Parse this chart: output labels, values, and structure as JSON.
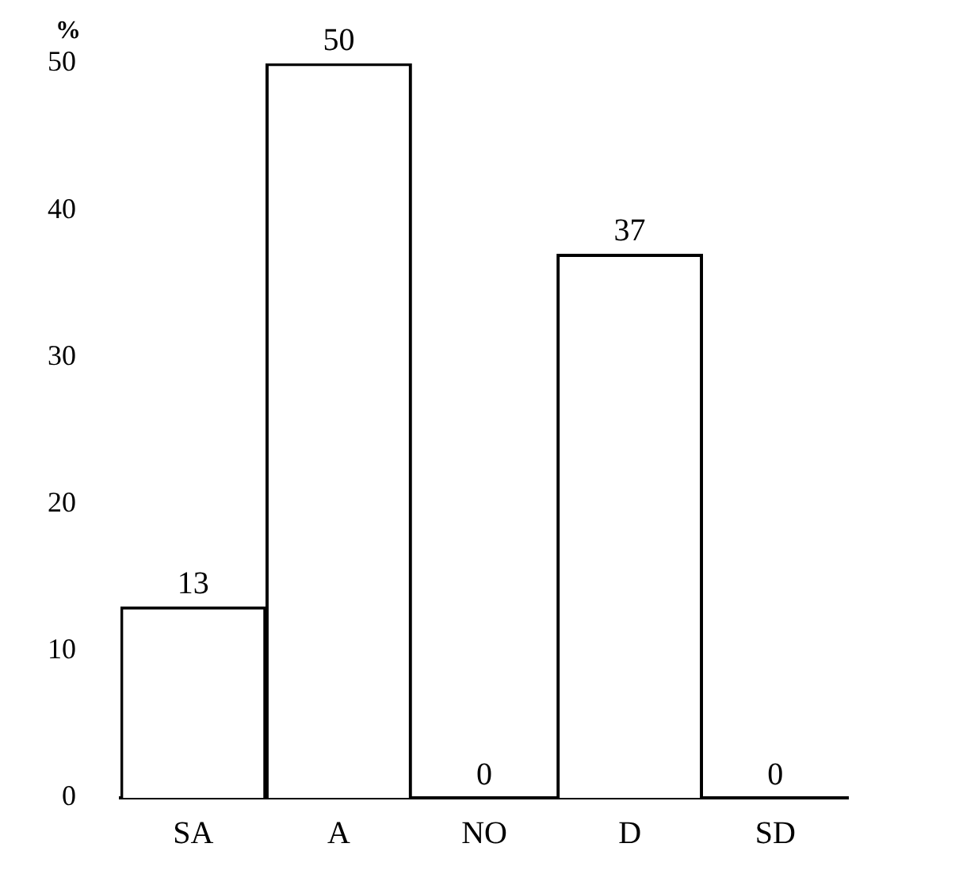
{
  "chart_data": {
    "type": "bar",
    "ylabel": "%",
    "categories": [
      "SA",
      "A",
      "NO",
      "D",
      "SD"
    ],
    "values": [
      13,
      50,
      0,
      37,
      0
    ],
    "color": "#ffffff",
    "ylim": [
      0,
      50
    ],
    "yticks": [
      0,
      10,
      20,
      30,
      40,
      50
    ],
    "grid": false,
    "legend": false,
    "data_labels": true
  }
}
